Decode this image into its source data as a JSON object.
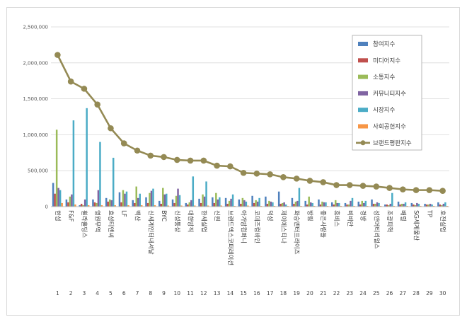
{
  "chart_data": {
    "type": "bar",
    "title": "",
    "xlabel": "",
    "ylabel": "",
    "ylim": [
      0,
      2500000
    ],
    "yticks": [
      0,
      500000,
      1000000,
      1500000,
      2000000,
      2500000
    ],
    "ytick_labels": [
      "0",
      "500,000",
      "1,000,000",
      "1,500,000",
      "2,000,000",
      "2,500,000"
    ],
    "grid": true,
    "legend_position": "top-right",
    "categories": [
      "한섬",
      "F&F",
      "휠라홀딩스",
      "영원무역",
      "효성티앤씨",
      "LF",
      "백산",
      "신세계인터내셔날",
      "BYC",
      "신성통상",
      "대한방직",
      "한세실업",
      "신원",
      "브랜드엑스코퍼레이션",
      "아가방컴퍼니",
      "코데즈컴바인",
      "덕성",
      "제이에스티나",
      "화승엔터프라이즈",
      "방림",
      "좋은사람들",
      "휴비스",
      "비비안",
      "경방",
      "성안머티리얼스",
      "조광피혁",
      "배럴",
      "SG세계물산",
      "TP",
      "호전실업"
    ],
    "ranks": [
      "1",
      "2",
      "3",
      "4",
      "5",
      "6",
      "7",
      "8",
      "9",
      "10",
      "11",
      "12",
      "13",
      "14",
      "15",
      "16",
      "17",
      "18",
      "19",
      "20",
      "21",
      "22",
      "23",
      "24",
      "25",
      "26",
      "27",
      "28",
      "29",
      "30"
    ],
    "series": [
      {
        "name": "참여지수",
        "color": "#4F81BD",
        "values": [
          330000,
          100000,
          20000,
          100000,
          120000,
          200000,
          90000,
          130000,
          80000,
          100000,
          50000,
          110000,
          130000,
          120000,
          100000,
          150000,
          140000,
          210000,
          120000,
          80000,
          100000,
          60000,
          50000,
          70000,
          100000,
          30000,
          70000,
          50000,
          40000,
          60000
        ]
      },
      {
        "name": "미디어지수",
        "color": "#C0504D",
        "values": [
          180000,
          60000,
          40000,
          60000,
          70000,
          60000,
          50000,
          50000,
          40000,
          50000,
          30000,
          50000,
          50000,
          40000,
          40000,
          50000,
          40000,
          40000,
          40000,
          30000,
          30000,
          30000,
          30000,
          30000,
          40000,
          30000,
          30000,
          30000,
          30000,
          30000
        ]
      },
      {
        "name": "소통지수",
        "color": "#9BBB59",
        "values": [
          1070000,
          140000,
          20000,
          50000,
          100000,
          230000,
          280000,
          190000,
          260000,
          150000,
          60000,
          170000,
          190000,
          80000,
          120000,
          90000,
          80000,
          50000,
          70000,
          140000,
          70000,
          90000,
          30000,
          80000,
          40000,
          20000,
          40000,
          20000,
          30000,
          20000
        ]
      },
      {
        "name": "커뮤니티지수",
        "color": "#8064A2",
        "values": [
          260000,
          170000,
          100000,
          230000,
          90000,
          180000,
          120000,
          220000,
          170000,
          250000,
          90000,
          140000,
          100000,
          110000,
          90000,
          70000,
          70000,
          60000,
          80000,
          60000,
          60000,
          50000,
          80000,
          50000,
          60000,
          40000,
          40000,
          50000,
          40000,
          40000
        ]
      },
      {
        "name": "시장지수",
        "color": "#4BACC6",
        "values": [
          230000,
          1200000,
          1370000,
          900000,
          680000,
          210000,
          180000,
          250000,
          180000,
          160000,
          420000,
          350000,
          130000,
          170000,
          70000,
          120000,
          60000,
          30000,
          260000,
          50000,
          60000,
          50000,
          120000,
          80000,
          50000,
          190000,
          60000,
          40000,
          30000,
          60000
        ]
      },
      {
        "name": "사회공헌지수",
        "color": "#F79646",
        "values": [
          50000,
          30000,
          20000,
          20000,
          20000,
          20000,
          20000,
          20000,
          15000,
          15000,
          15000,
          15000,
          15000,
          10000,
          15000,
          10000,
          10000,
          10000,
          10000,
          10000,
          10000,
          10000,
          10000,
          10000,
          10000,
          10000,
          10000,
          10000,
          10000,
          10000
        ]
      }
    ],
    "line_series": {
      "name": "브랜드평판지수",
      "color": "#948A54",
      "values": [
        2110000,
        1740000,
        1640000,
        1420000,
        1090000,
        880000,
        780000,
        710000,
        690000,
        650000,
        640000,
        640000,
        570000,
        560000,
        470000,
        460000,
        450000,
        410000,
        390000,
        360000,
        340000,
        300000,
        300000,
        290000,
        280000,
        260000,
        240000,
        230000,
        230000,
        220000
      ]
    }
  }
}
